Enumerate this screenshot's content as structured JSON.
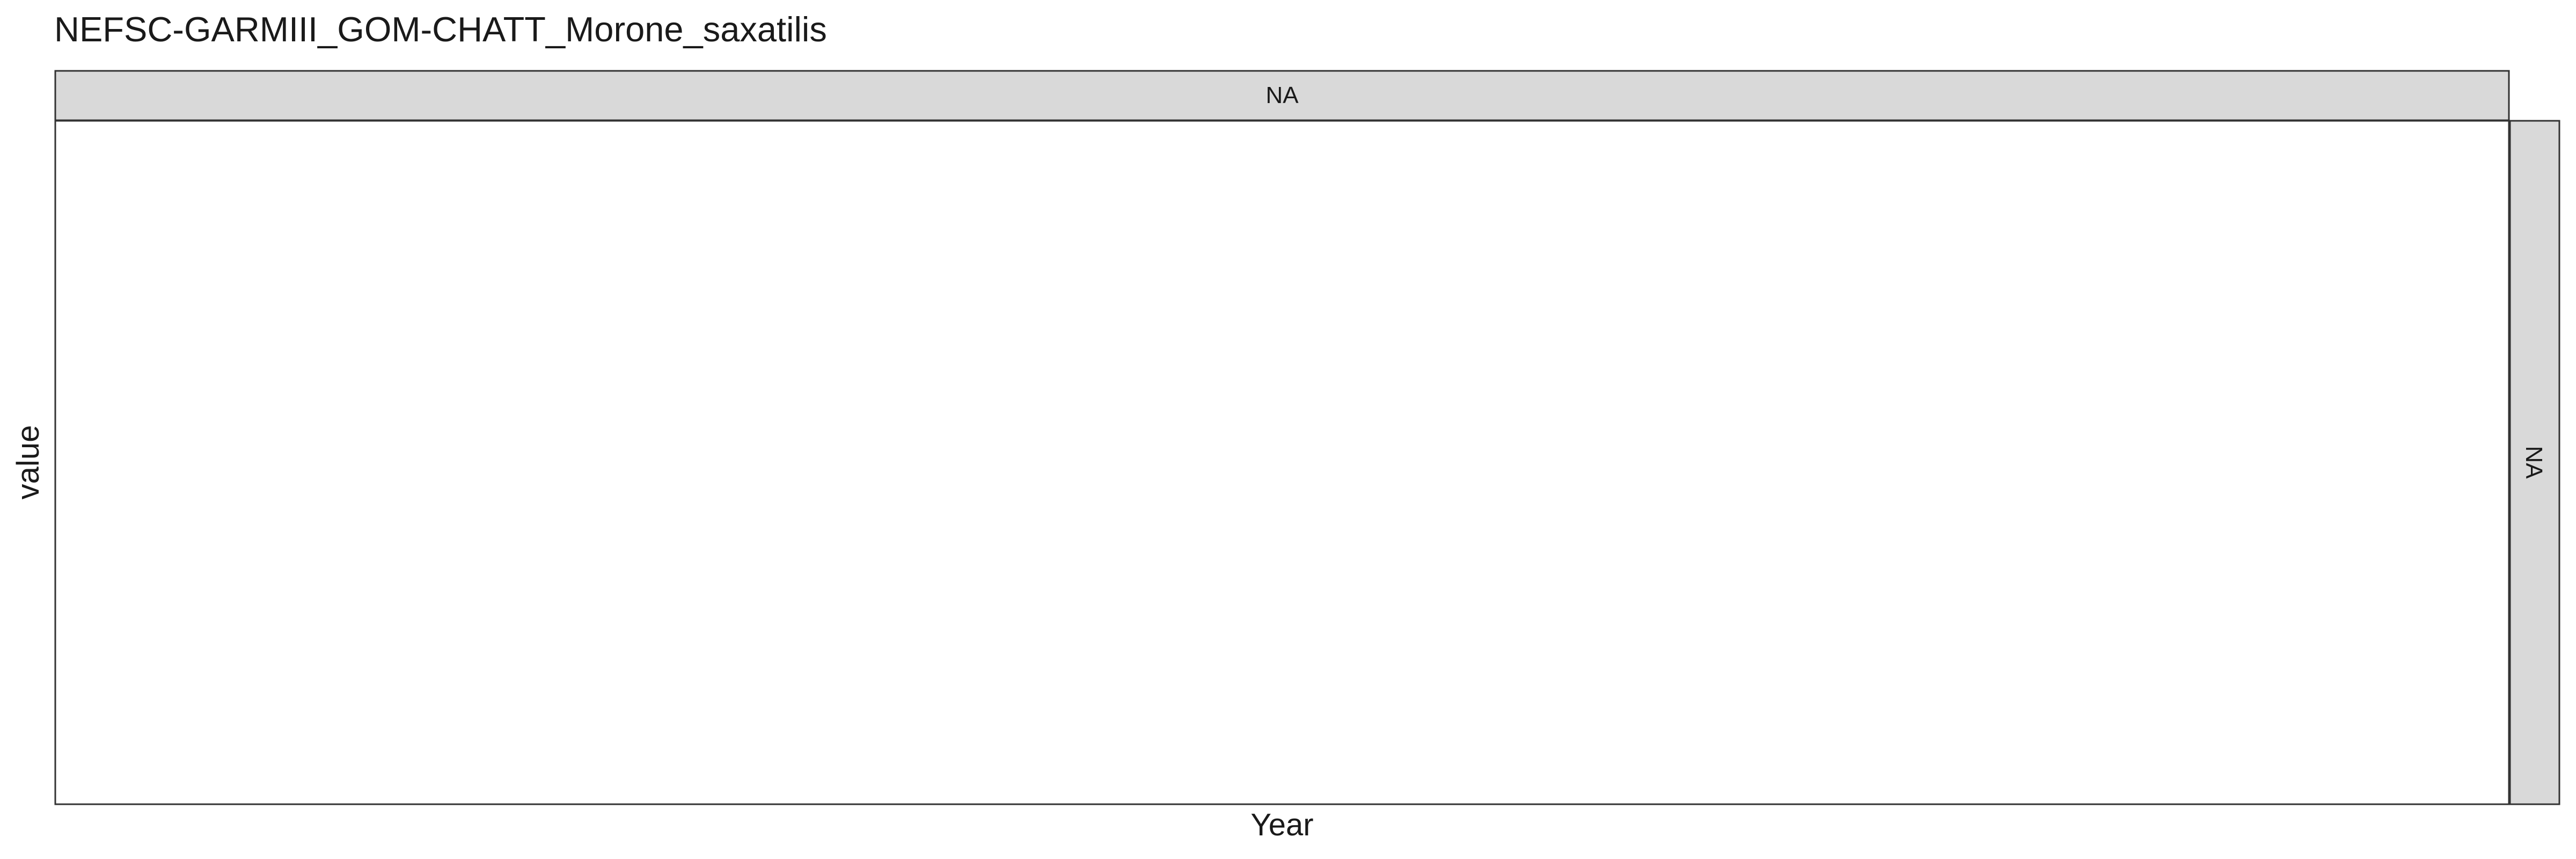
{
  "chart_data": {
    "type": "line",
    "title": "NEFSC-GARMIII_GOM-CHATT_Morone_saxatilis",
    "xlabel": "Year",
    "ylabel": "value",
    "facet": {
      "column_label": "NA",
      "row_label": "NA"
    },
    "series": [],
    "grid": false,
    "colors": {
      "panel_background": "#ffffff",
      "panel_border": "#333333",
      "strip_fill": "#d9d9d9",
      "strip_border": "#333333",
      "text": "#1a1a1a"
    }
  }
}
